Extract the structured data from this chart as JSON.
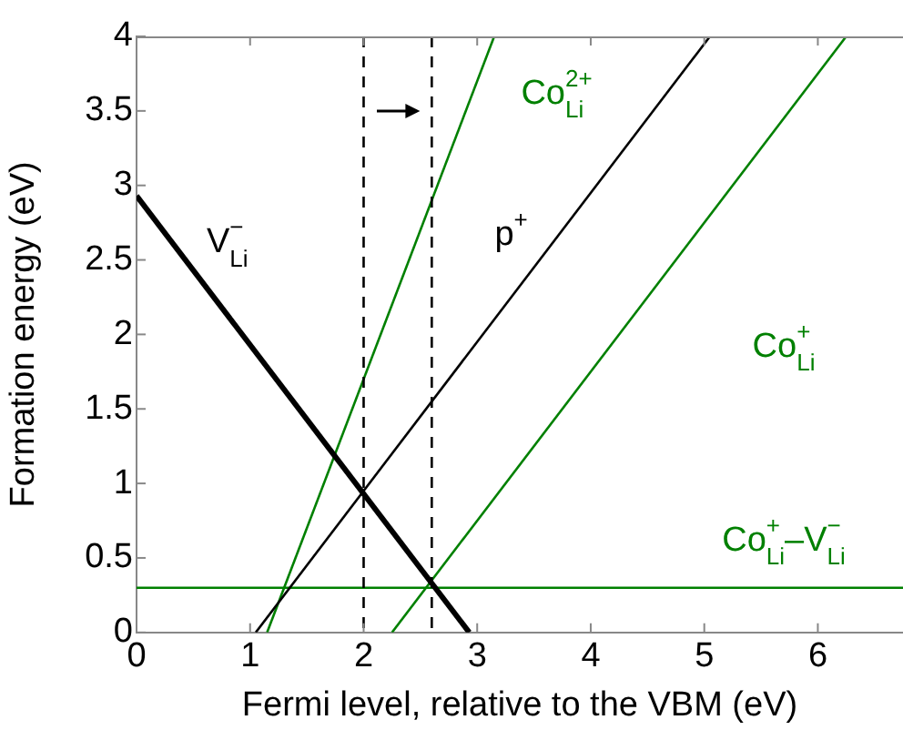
{
  "chart_data": {
    "type": "line",
    "xlabel": "Fermi level, relative to the VBM (eV)",
    "ylabel": "Formation energy (eV)",
    "series": [
      {
        "name": "V$_{Li}$$^{−}$",
        "color": "#000000",
        "x": [
          0,
          2.93
        ],
        "values": [
          2.93,
          0
        ]
      },
      {
        "name": "p$^{+}$",
        "color": "#000000",
        "x": [
          1.05,
          5.05
        ],
        "values": [
          0,
          4
        ]
      },
      {
        "name": "Co$_{Li}$$^{2+}$",
        "color": "#008000",
        "x": [
          1.15,
          3.15
        ],
        "values": [
          0,
          4
        ]
      },
      {
        "name": "Co$_{Li}$$^{+}$",
        "color": "#008000",
        "x": [
          2.25,
          6.25
        ],
        "values": [
          0,
          4
        ]
      },
      {
        "name": "Co$_{Li}$$^{+}$–V$_{Li}$$^{−}$",
        "color": "#008000",
        "x": [
          0,
          6.75
        ],
        "values": [
          0.3,
          0.3
        ]
      }
    ],
    "ref_lines": [
      {
        "axis": "x",
        "value": 2,
        "color": "#000000",
        "line_style": "dashed"
      },
      {
        "axis": "x",
        "value": 2.6,
        "color": "#000000",
        "line_style": "dashed"
      }
    ],
    "xlim": [
      0,
      6.75
    ],
    "xticks": [
      0,
      1,
      2,
      3,
      4,
      5,
      6
    ],
    "ylim": [
      0,
      4
    ],
    "yticks": [
      0,
      0.5,
      1,
      1.5,
      2,
      2.5,
      3,
      3.5,
      4
    ],
    "grid": false,
    "legend": false,
    "marker": "none",
    "line_style": "solid"
  }
}
